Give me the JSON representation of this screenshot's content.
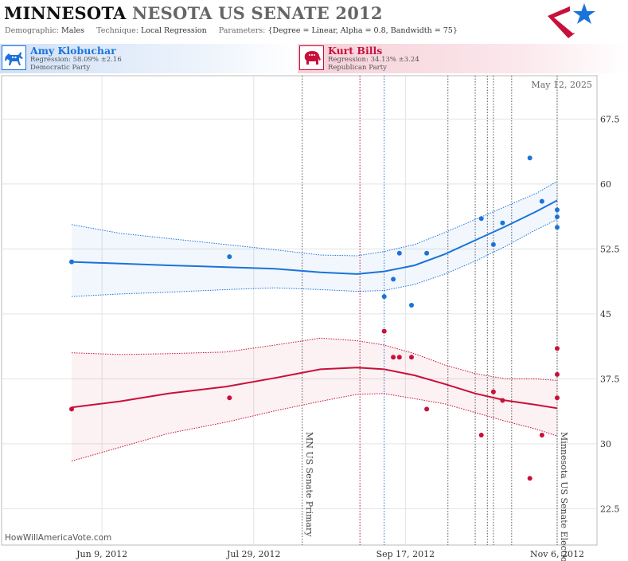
{
  "header": {
    "title_state": "MINNESOTA",
    "title_race": "NESOTA US SENATE 2012",
    "demographic_label": "Demographic:",
    "demographic": "Males",
    "technique_label": "Technique:",
    "technique": "Local Regression",
    "parameters_label": "Parameters:",
    "parameters": "{Degree = Linear, Alpha = 0.8, Bandwidth = 75}"
  },
  "candidates": [
    {
      "name": "Amy Klobuchar",
      "regression": "Regression: 58.09% ±2.16",
      "party": "Democratic Party",
      "icon": "donkey-icon",
      "color": "#1a73d9"
    },
    {
      "name": "Kurt Bills",
      "regression": "Regression: 34.13% ±3.24",
      "party": "Republican Party",
      "icon": "elephant-icon",
      "color": "#c8103a"
    }
  ],
  "chart_data": {
    "type": "scatter",
    "date_stamp": "May 12, 2025",
    "watermark": "HowWillAmericaVote.com",
    "x_ticks": [
      "Jun 9, 2012",
      "Jul 29, 2012",
      "Sep 17, 2012",
      "Nov 6, 2012"
    ],
    "x_range": [
      "2012-05-30",
      "2012-11-06"
    ],
    "ylim": [
      18.3,
      72.5
    ],
    "y_ticks": [
      22.5,
      30,
      37.5,
      45,
      52.5,
      60,
      67.5
    ],
    "events": [
      {
        "date": "2012-08-14",
        "label": "MN US Senate Primary",
        "color": "#555555"
      },
      {
        "date": "2012-09-02",
        "label": "",
        "color": "#b0103a"
      },
      {
        "date": "2012-09-10",
        "label": "",
        "color": "#1a73d9"
      },
      {
        "date": "2012-10-01",
        "label": "",
        "color": "#555555"
      },
      {
        "date": "2012-10-10",
        "label": "",
        "color": "#555555"
      },
      {
        "date": "2012-10-14",
        "label": "",
        "color": "#555555"
      },
      {
        "date": "2012-10-16",
        "label": "",
        "color": "#555555"
      },
      {
        "date": "2012-10-22",
        "label": "",
        "color": "#555555"
      },
      {
        "date": "2012-11-06",
        "label": "Minnesota US Senate Election",
        "color": "#555555"
      }
    ],
    "series": [
      {
        "name": "Amy Klobuchar",
        "color": "#1a73d9",
        "points": [
          [
            "2012-05-30",
            51.0
          ],
          [
            "2012-07-21",
            51.6
          ],
          [
            "2012-09-10",
            47.0
          ],
          [
            "2012-09-13",
            49.0
          ],
          [
            "2012-09-15",
            52.0
          ],
          [
            "2012-09-19",
            46.0
          ],
          [
            "2012-09-24",
            52.0
          ],
          [
            "2012-10-12",
            56.0
          ],
          [
            "2012-10-16",
            53.0
          ],
          [
            "2012-10-19",
            55.5
          ],
          [
            "2012-10-28",
            63.0
          ],
          [
            "2012-11-01",
            58.0
          ],
          [
            "2012-11-06",
            57.0
          ],
          [
            "2012-11-06",
            56.2
          ],
          [
            "2012-11-06",
            55.0
          ]
        ],
        "fit": [
          [
            "2012-05-30",
            51.0
          ],
          [
            "2012-06-15",
            50.8
          ],
          [
            "2012-07-01",
            50.6
          ],
          [
            "2012-07-20",
            50.4
          ],
          [
            "2012-08-05",
            50.2
          ],
          [
            "2012-08-20",
            49.8
          ],
          [
            "2012-09-01",
            49.6
          ],
          [
            "2012-09-10",
            49.9
          ],
          [
            "2012-09-20",
            50.6
          ],
          [
            "2012-09-30",
            51.9
          ],
          [
            "2012-10-10",
            53.5
          ],
          [
            "2012-10-20",
            55.1
          ],
          [
            "2012-10-30",
            56.8
          ],
          [
            "2012-11-06",
            58.1
          ]
        ],
        "band_upper": [
          [
            "2012-05-30",
            55.3
          ],
          [
            "2012-06-15",
            54.3
          ],
          [
            "2012-07-01",
            53.7
          ],
          [
            "2012-07-20",
            53.0
          ],
          [
            "2012-08-05",
            52.4
          ],
          [
            "2012-08-20",
            51.8
          ],
          [
            "2012-09-01",
            51.7
          ],
          [
            "2012-09-10",
            52.2
          ],
          [
            "2012-09-20",
            53.0
          ],
          [
            "2012-09-30",
            54.4
          ],
          [
            "2012-10-10",
            55.9
          ],
          [
            "2012-10-20",
            57.4
          ],
          [
            "2012-10-30",
            58.9
          ],
          [
            "2012-11-06",
            60.3
          ]
        ],
        "band_lower": [
          [
            "2012-05-30",
            47.0
          ],
          [
            "2012-06-15",
            47.3
          ],
          [
            "2012-07-01",
            47.5
          ],
          [
            "2012-07-20",
            47.8
          ],
          [
            "2012-08-05",
            48.0
          ],
          [
            "2012-08-20",
            47.8
          ],
          [
            "2012-09-01",
            47.6
          ],
          [
            "2012-09-10",
            47.7
          ],
          [
            "2012-09-20",
            48.4
          ],
          [
            "2012-09-30",
            49.6
          ],
          [
            "2012-10-10",
            51.1
          ],
          [
            "2012-10-20",
            52.8
          ],
          [
            "2012-10-30",
            54.7
          ],
          [
            "2012-11-06",
            55.9
          ]
        ]
      },
      {
        "name": "Kurt Bills",
        "color": "#c8103a",
        "points": [
          [
            "2012-05-30",
            34.0
          ],
          [
            "2012-07-21",
            35.3
          ],
          [
            "2012-09-10",
            43.0
          ],
          [
            "2012-09-13",
            40.0
          ],
          [
            "2012-09-15",
            40.0
          ],
          [
            "2012-09-19",
            40.0
          ],
          [
            "2012-09-24",
            34.0
          ],
          [
            "2012-10-12",
            31.0
          ],
          [
            "2012-10-16",
            36.0
          ],
          [
            "2012-10-19",
            35.0
          ],
          [
            "2012-10-28",
            26.0
          ],
          [
            "2012-11-01",
            31.0
          ],
          [
            "2012-11-06",
            41.0
          ],
          [
            "2012-11-06",
            38.0
          ],
          [
            "2012-11-06",
            35.3
          ]
        ],
        "fit": [
          [
            "2012-05-30",
            34.2
          ],
          [
            "2012-06-15",
            34.9
          ],
          [
            "2012-07-01",
            35.8
          ],
          [
            "2012-07-20",
            36.6
          ],
          [
            "2012-08-05",
            37.6
          ],
          [
            "2012-08-20",
            38.6
          ],
          [
            "2012-09-01",
            38.8
          ],
          [
            "2012-09-10",
            38.6
          ],
          [
            "2012-09-20",
            37.9
          ],
          [
            "2012-09-30",
            36.9
          ],
          [
            "2012-10-10",
            35.8
          ],
          [
            "2012-10-20",
            35.0
          ],
          [
            "2012-10-30",
            34.5
          ],
          [
            "2012-11-06",
            34.1
          ]
        ],
        "band_upper": [
          [
            "2012-05-30",
            40.5
          ],
          [
            "2012-06-15",
            40.3
          ],
          [
            "2012-07-01",
            40.4
          ],
          [
            "2012-07-20",
            40.6
          ],
          [
            "2012-08-05",
            41.4
          ],
          [
            "2012-08-20",
            42.2
          ],
          [
            "2012-09-01",
            41.9
          ],
          [
            "2012-09-10",
            41.4
          ],
          [
            "2012-09-20",
            40.4
          ],
          [
            "2012-09-30",
            39.1
          ],
          [
            "2012-10-10",
            38.1
          ],
          [
            "2012-10-20",
            37.5
          ],
          [
            "2012-10-30",
            37.5
          ],
          [
            "2012-11-06",
            37.3
          ]
        ],
        "band_lower": [
          [
            "2012-05-30",
            28.0
          ],
          [
            "2012-06-15",
            29.6
          ],
          [
            "2012-07-01",
            31.2
          ],
          [
            "2012-07-20",
            32.5
          ],
          [
            "2012-08-05",
            33.8
          ],
          [
            "2012-08-20",
            34.9
          ],
          [
            "2012-09-01",
            35.7
          ],
          [
            "2012-09-10",
            35.8
          ],
          [
            "2012-09-20",
            35.2
          ],
          [
            "2012-09-30",
            34.6
          ],
          [
            "2012-10-10",
            33.6
          ],
          [
            "2012-10-20",
            32.6
          ],
          [
            "2012-10-30",
            31.7
          ],
          [
            "2012-11-06",
            30.9
          ]
        ]
      }
    ]
  }
}
